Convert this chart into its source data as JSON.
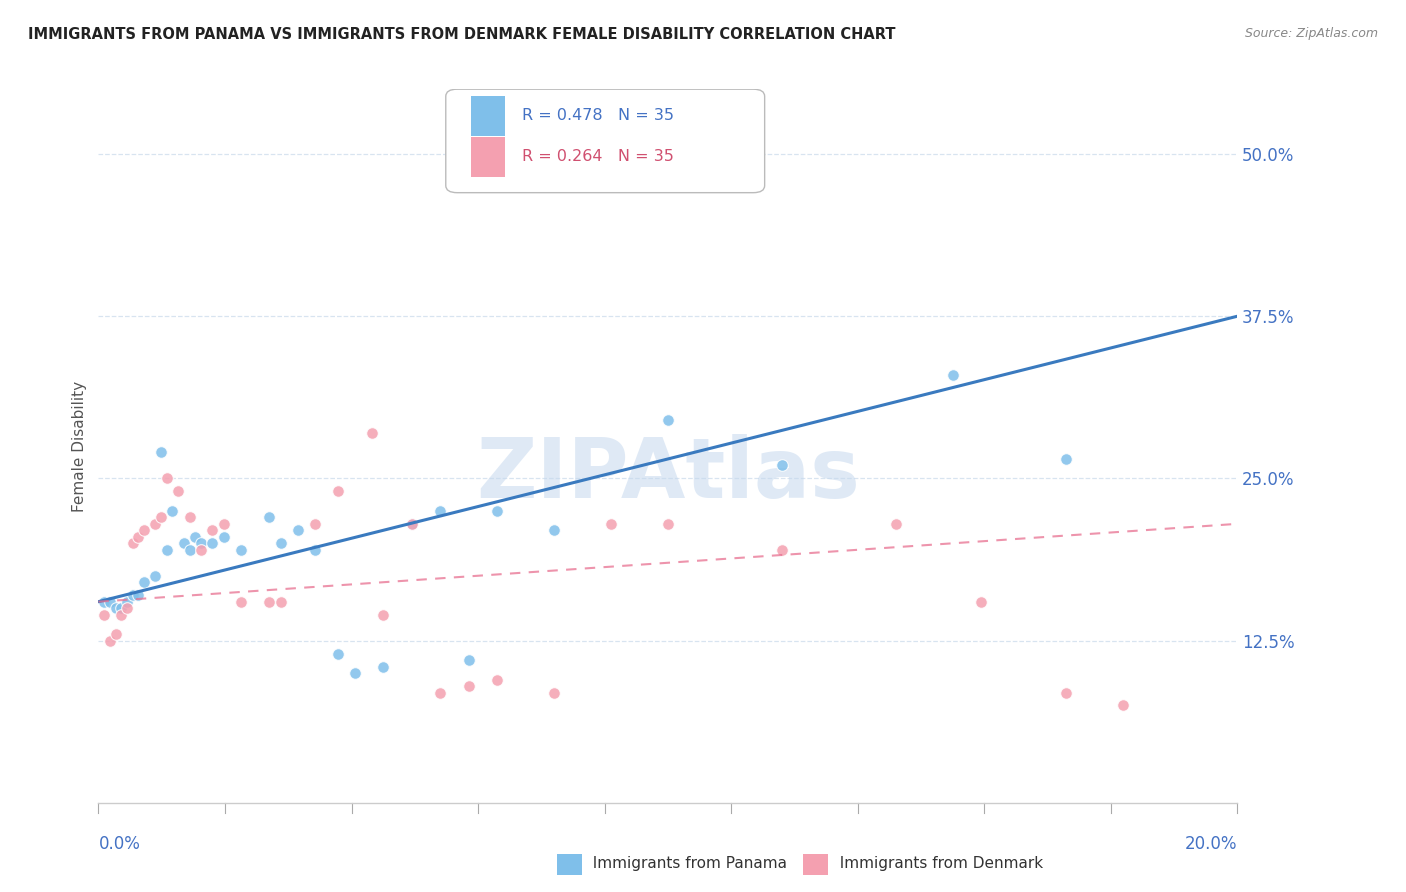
{
  "title": "IMMIGRANTS FROM PANAMA VS IMMIGRANTS FROM DENMARK FEMALE DISABILITY CORRELATION CHART",
  "source": "Source: ZipAtlas.com",
  "ylabel": "Female Disability",
  "ytick_labels": [
    "12.5%",
    "25.0%",
    "37.5%",
    "50.0%"
  ],
  "ytick_values": [
    0.125,
    0.25,
    0.375,
    0.5
  ],
  "xlim": [
    0.0,
    0.2
  ],
  "ylim": [
    0.0,
    0.55
  ],
  "r_panama": 0.478,
  "n_panama": 35,
  "r_denmark": 0.264,
  "n_denmark": 35,
  "color_panama": "#7fbfea",
  "color_denmark": "#f4a0b0",
  "color_trendline_panama": "#3a7abf",
  "color_trendline_denmark": "#e87090",
  "panama_x": [
    0.001,
    0.002,
    0.003,
    0.004,
    0.005,
    0.006,
    0.007,
    0.008,
    0.01,
    0.011,
    0.012,
    0.013,
    0.015,
    0.016,
    0.017,
    0.018,
    0.02,
    0.022,
    0.025,
    0.03,
    0.032,
    0.035,
    0.038,
    0.042,
    0.045,
    0.05,
    0.055,
    0.06,
    0.065,
    0.07,
    0.08,
    0.1,
    0.12,
    0.15,
    0.17
  ],
  "panama_y": [
    0.155,
    0.155,
    0.15,
    0.15,
    0.155,
    0.16,
    0.16,
    0.17,
    0.175,
    0.27,
    0.195,
    0.225,
    0.2,
    0.195,
    0.205,
    0.2,
    0.2,
    0.205,
    0.195,
    0.22,
    0.2,
    0.21,
    0.195,
    0.115,
    0.1,
    0.105,
    0.215,
    0.225,
    0.11,
    0.225,
    0.21,
    0.295,
    0.26,
    0.33,
    0.265
  ],
  "denmark_x": [
    0.001,
    0.002,
    0.003,
    0.004,
    0.005,
    0.006,
    0.007,
    0.008,
    0.01,
    0.011,
    0.012,
    0.014,
    0.016,
    0.018,
    0.02,
    0.022,
    0.025,
    0.03,
    0.032,
    0.038,
    0.042,
    0.048,
    0.05,
    0.055,
    0.06,
    0.065,
    0.07,
    0.08,
    0.09,
    0.1,
    0.12,
    0.14,
    0.155,
    0.17,
    0.18
  ],
  "denmark_y": [
    0.145,
    0.125,
    0.13,
    0.145,
    0.15,
    0.2,
    0.205,
    0.21,
    0.215,
    0.22,
    0.25,
    0.24,
    0.22,
    0.195,
    0.21,
    0.215,
    0.155,
    0.155,
    0.155,
    0.215,
    0.24,
    0.285,
    0.145,
    0.215,
    0.085,
    0.09,
    0.095,
    0.085,
    0.215,
    0.215,
    0.195,
    0.215,
    0.155,
    0.085,
    0.075
  ],
  "watermark": "ZIPAtlas",
  "background_color": "#ffffff",
  "grid_color": "#d8e4f0"
}
